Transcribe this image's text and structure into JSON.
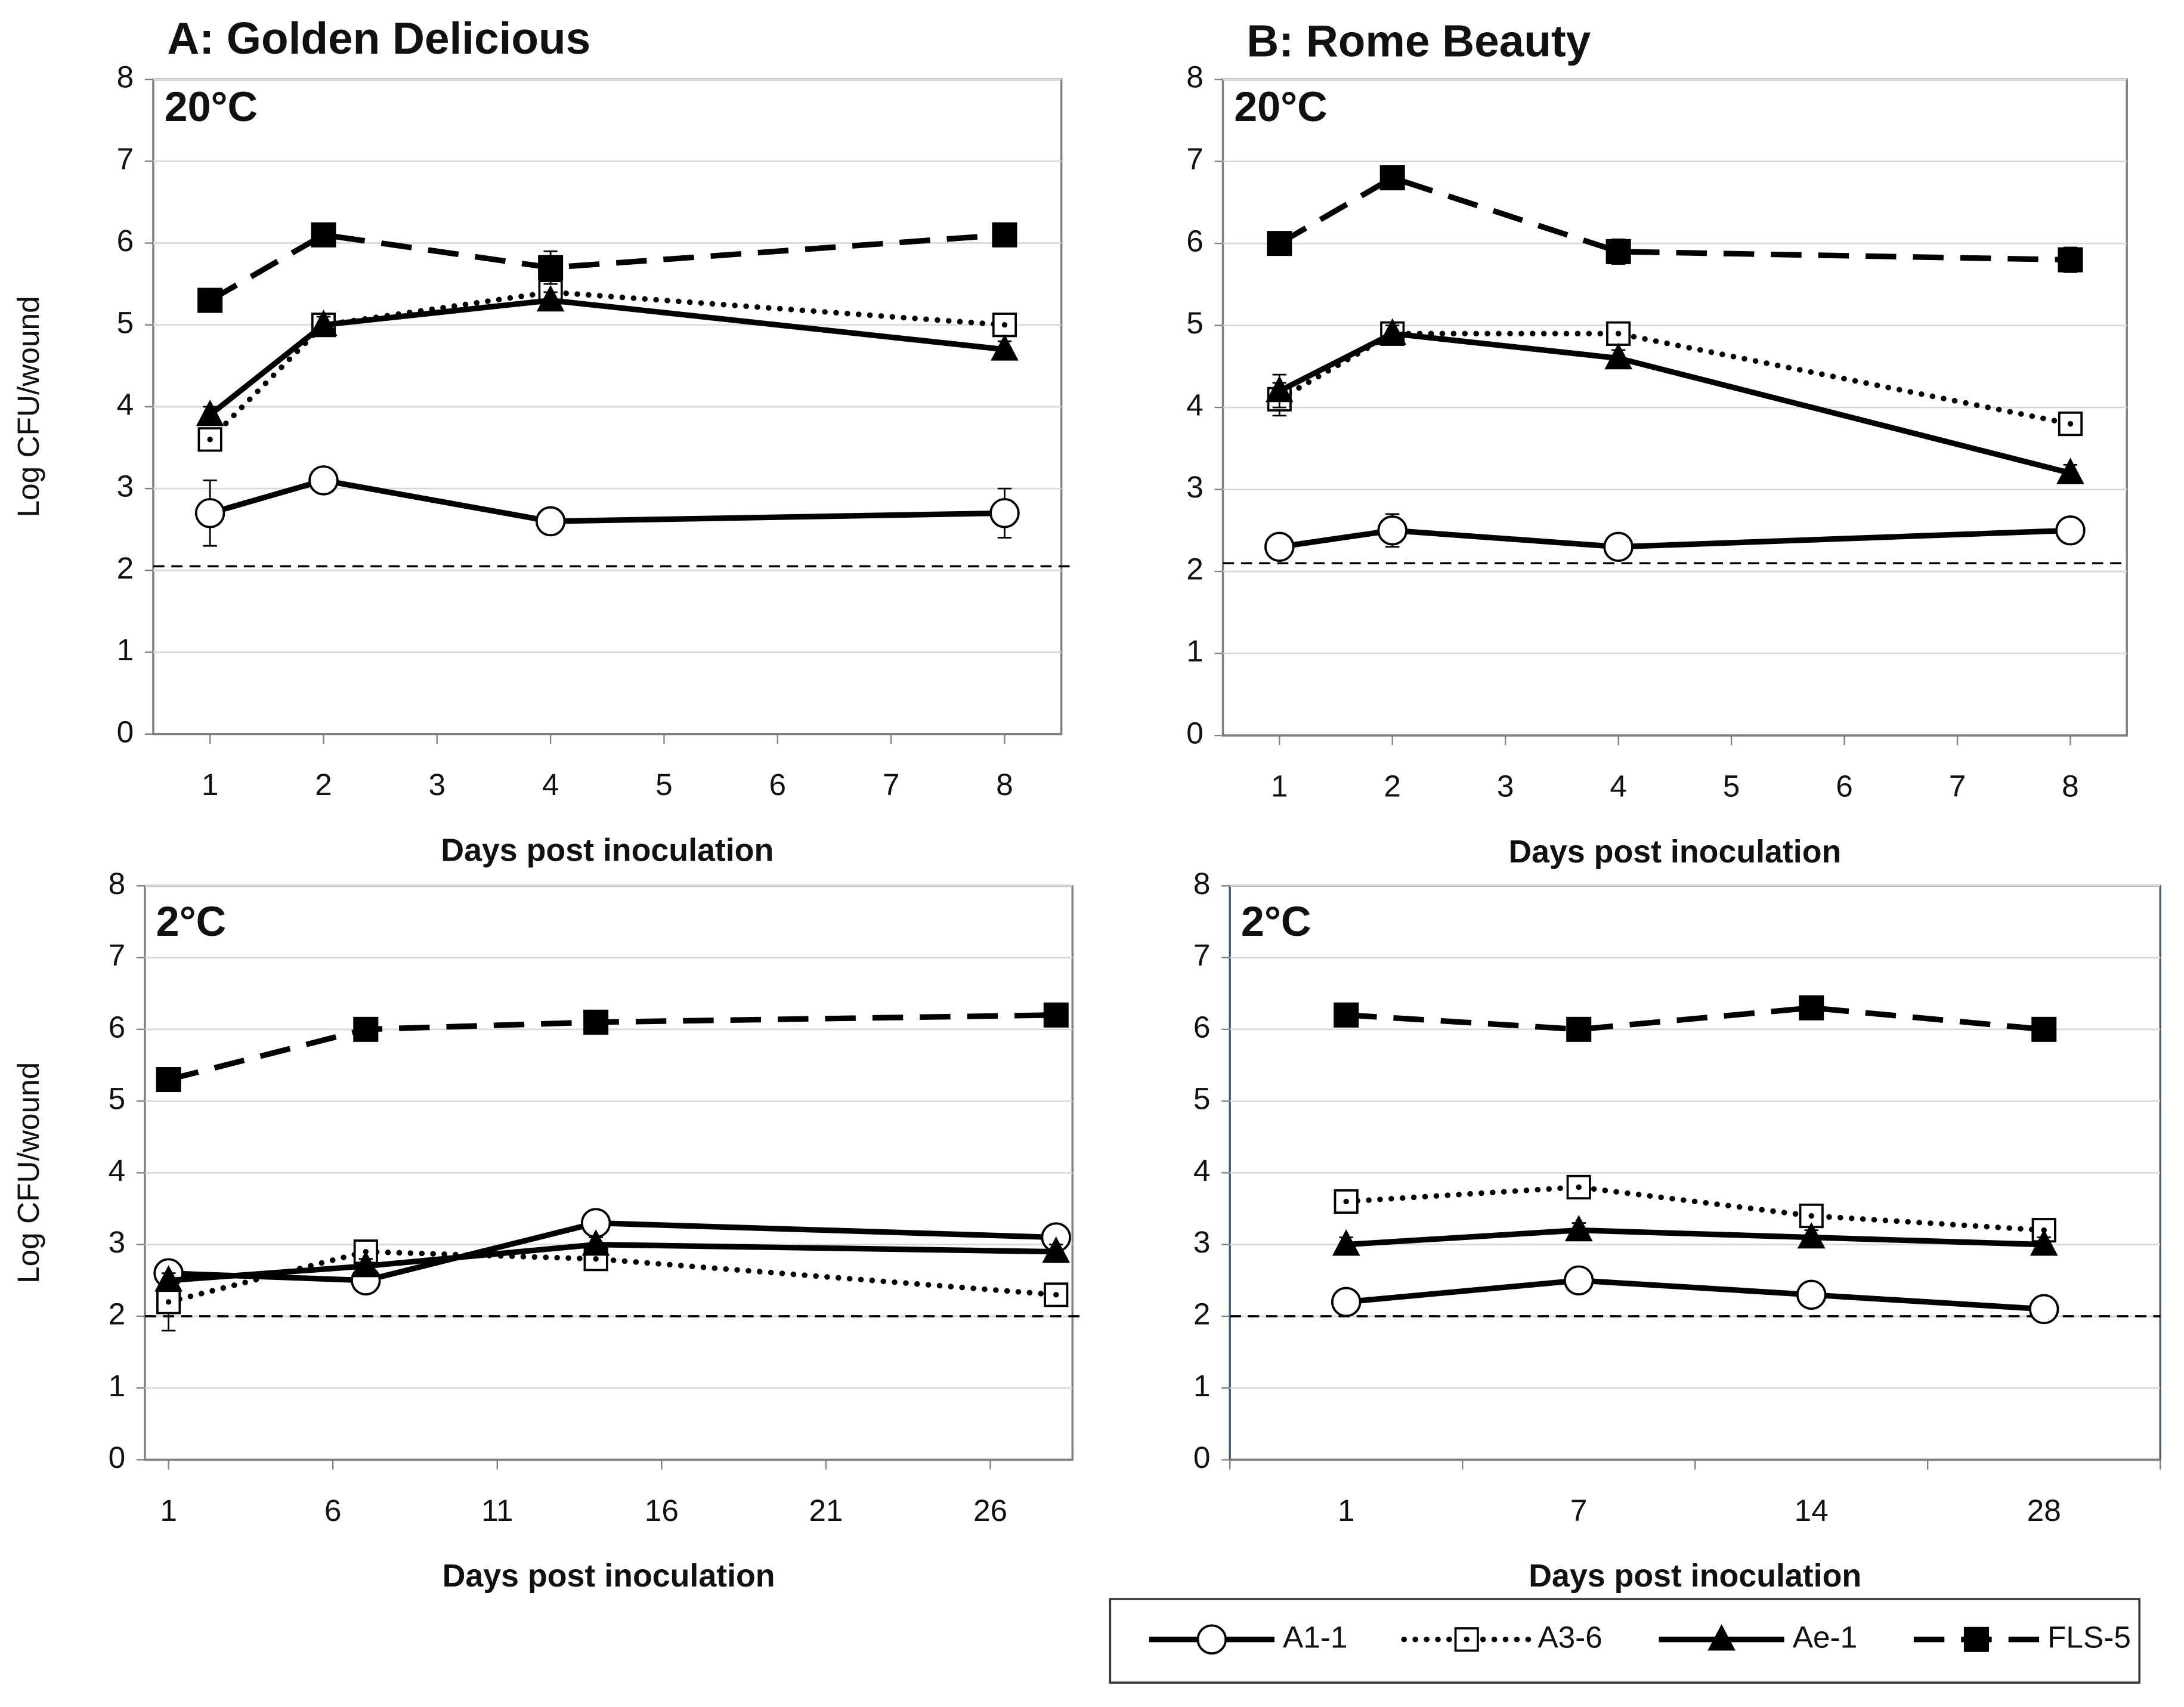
{
  "chart_data": [
    {
      "type": "line",
      "title": "A: Golden Delicious",
      "panel_label": "20°C",
      "xlabel": "Days post inoculation",
      "ylabel": "Log CFU/wound",
      "x": [
        1,
        2,
        4,
        8
      ],
      "xlim": [
        0.5,
        8.5
      ],
      "xticks": [
        1,
        2,
        3,
        4,
        5,
        6,
        7,
        8
      ],
      "ylim": [
        0,
        8
      ],
      "yticks": [
        0,
        1,
        2,
        3,
        4,
        5,
        6,
        7,
        8
      ],
      "grid": true,
      "limit_line": 2.05,
      "series": [
        {
          "name": "A1-1",
          "color": "#000000",
          "line_style": "solid",
          "marker": "circle",
          "values": [
            2.7,
            3.1,
            2.6,
            2.7
          ],
          "errors": [
            0.4,
            0.1,
            0.1,
            0.3
          ]
        },
        {
          "name": "A3-6",
          "color": "#000000",
          "line_style": "dotted",
          "marker": "square-open",
          "values": [
            3.6,
            5.0,
            5.4,
            5.0
          ],
          "errors": [
            0.1,
            0.1,
            0.1,
            0.1
          ]
        },
        {
          "name": "Ae-1",
          "color": "#000000",
          "line_style": "solid",
          "marker": "triangle",
          "values": [
            3.9,
            5.0,
            5.3,
            4.7
          ],
          "errors": [
            0.1,
            0.1,
            0.1,
            0.1
          ]
        },
        {
          "name": "FLS-5",
          "color": "#000000",
          "line_style": "dashed",
          "marker": "square",
          "values": [
            5.3,
            6.1,
            5.7,
            6.1
          ],
          "errors": [
            0.1,
            0.1,
            0.2,
            0.1
          ]
        }
      ]
    },
    {
      "type": "line",
      "title": "B: Rome Beauty",
      "panel_label": "20°C",
      "xlabel": "Days post inoculation",
      "x": [
        1,
        2,
        4,
        8
      ],
      "xlim": [
        0.5,
        8.5
      ],
      "xticks": [
        1,
        2,
        3,
        4,
        5,
        6,
        7,
        8
      ],
      "ylim": [
        0,
        8
      ],
      "yticks": [
        0,
        1,
        2,
        3,
        4,
        5,
        6,
        7,
        8
      ],
      "grid": true,
      "limit_line": 2.1,
      "series": [
        {
          "name": "A1-1",
          "color": "#000000",
          "line_style": "solid",
          "marker": "circle",
          "values": [
            2.3,
            2.5,
            2.3,
            2.5
          ],
          "errors": [
            0.1,
            0.2,
            0.1,
            0.1
          ]
        },
        {
          "name": "A3-6",
          "color": "#000000",
          "line_style": "dotted",
          "marker": "square-open",
          "values": [
            4.1,
            4.9,
            4.9,
            3.8
          ],
          "errors": [
            0.2,
            0.1,
            0.1,
            0.1
          ]
        },
        {
          "name": "Ae-1",
          "color": "#000000",
          "line_style": "solid",
          "marker": "triangle",
          "values": [
            4.2,
            4.9,
            4.6,
            3.2
          ],
          "errors": [
            0.2,
            0.1,
            0.1,
            0.1
          ]
        },
        {
          "name": "FLS-5",
          "color": "#000000",
          "line_style": "dashed",
          "marker": "square",
          "values": [
            6.0,
            6.8,
            5.9,
            5.8
          ],
          "errors": [
            0.1,
            0.1,
            0.15,
            0.15
          ]
        }
      ]
    },
    {
      "type": "line",
      "panel_label": "2°C",
      "xlabel": "Days post inoculation",
      "ylabel": "Log CFU/wound",
      "x": [
        1,
        7,
        14,
        28
      ],
      "xlim": [
        0.28,
        28.5
      ],
      "xticks": [
        1,
        6,
        11,
        16,
        21,
        26
      ],
      "ylim": [
        0,
        8
      ],
      "yticks": [
        0,
        1,
        2,
        3,
        4,
        5,
        6,
        7,
        8
      ],
      "grid": true,
      "limit_line": 2.0,
      "series": [
        {
          "name": "A1-1",
          "color": "#000000",
          "line_style": "solid",
          "marker": "circle",
          "values": [
            2.6,
            2.5,
            3.3,
            3.1
          ],
          "errors": [
            0.1,
            0.1,
            0.1,
            0.1
          ]
        },
        {
          "name": "A3-6",
          "color": "#000000",
          "line_style": "dotted",
          "marker": "square-open",
          "values": [
            2.2,
            2.9,
            2.8,
            2.3
          ],
          "errors": [
            0.4,
            0.1,
            0.1,
            0.1
          ]
        },
        {
          "name": "Ae-1",
          "color": "#000000",
          "line_style": "solid",
          "marker": "triangle",
          "values": [
            2.5,
            2.7,
            3.0,
            2.9
          ],
          "errors": [
            0.1,
            0.1,
            0.1,
            0.1
          ]
        },
        {
          "name": "FLS-5",
          "color": "#000000",
          "line_style": "dashed",
          "marker": "square",
          "values": [
            5.3,
            6.0,
            6.1,
            6.2
          ],
          "errors": [
            0.1,
            0.1,
            0.1,
            0.1
          ]
        }
      ]
    },
    {
      "type": "line",
      "panel_label": "2°C",
      "xlabel": "Days post inoculation",
      "categories": [
        "1",
        "7",
        "14",
        "28"
      ],
      "ylim": [
        0,
        8
      ],
      "yticks": [
        0,
        1,
        2,
        3,
        4,
        5,
        6,
        7,
        8
      ],
      "grid": true,
      "limit_line": 2.0,
      "series": [
        {
          "name": "A1-1",
          "color": "#000000",
          "line_style": "solid",
          "marker": "circle",
          "values": [
            2.2,
            2.5,
            2.3,
            2.1
          ],
          "errors": [
            0.1,
            0.1,
            0.1,
            0.1
          ]
        },
        {
          "name": "A3-6",
          "color": "#000000",
          "line_style": "dotted",
          "marker": "square-open",
          "values": [
            3.6,
            3.8,
            3.4,
            3.2
          ],
          "errors": [
            0.1,
            0.1,
            0.1,
            0.1
          ]
        },
        {
          "name": "Ae-1",
          "color": "#000000",
          "line_style": "solid",
          "marker": "triangle",
          "values": [
            3.0,
            3.2,
            3.1,
            3.0
          ],
          "errors": [
            0.1,
            0.1,
            0.1,
            0.1
          ]
        },
        {
          "name": "FLS-5",
          "color": "#000000",
          "line_style": "dashed",
          "marker": "square",
          "values": [
            6.2,
            6.0,
            6.3,
            6.0
          ],
          "errors": [
            0.1,
            0.1,
            0.1,
            0.1
          ]
        }
      ]
    }
  ]
}
